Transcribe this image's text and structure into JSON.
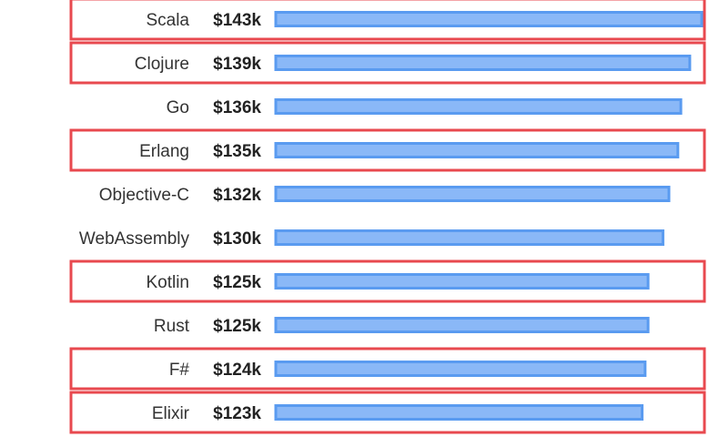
{
  "chart_data": {
    "type": "bar",
    "orientation": "horizontal",
    "title": "",
    "xlabel": "",
    "ylabel": "",
    "categories": [
      "Scala",
      "Clojure",
      "Go",
      "Erlang",
      "Objective-C",
      "WebAssembly",
      "Kotlin",
      "Rust",
      "F#",
      "Elixir"
    ],
    "values": [
      143,
      139,
      136,
      135,
      132,
      130,
      125,
      125,
      124,
      123
    ],
    "value_labels": [
      "$143k",
      "$139k",
      "$136k",
      "$135k",
      "$132k",
      "$130k",
      "$125k",
      "$125k",
      "$124k",
      "$123k"
    ],
    "highlighted": [
      true,
      true,
      false,
      true,
      false,
      false,
      true,
      false,
      true,
      true
    ],
    "xlim": [
      0,
      143
    ],
    "grid": false,
    "legend": "none",
    "colors": {
      "bar_fill": "#8ab8f7",
      "bar_stroke": "#5a9bf0",
      "highlight": "#e8494f"
    }
  }
}
